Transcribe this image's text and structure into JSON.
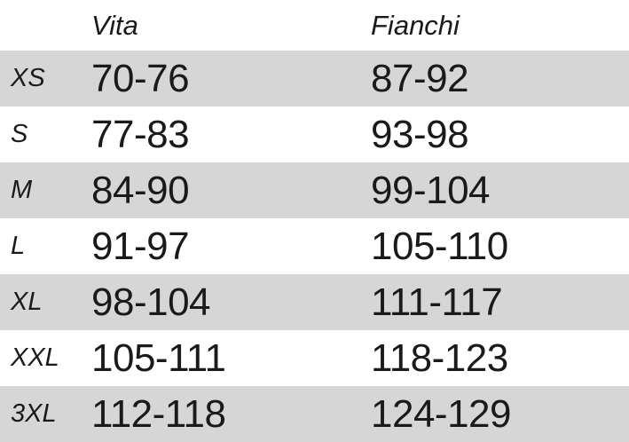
{
  "colors": {
    "stripe_gray": "#d6d6d6",
    "row_white": "#ffffff",
    "text": "#1a1a1a"
  },
  "chart_data": {
    "type": "table",
    "title": "",
    "columns": [
      "",
      "Vita",
      "Fianchi"
    ],
    "rows": [
      {
        "size": "XS",
        "vita": "70-76",
        "fianchi": "87-92"
      },
      {
        "size": "S",
        "vita": "77-83",
        "fianchi": "93-98"
      },
      {
        "size": "M",
        "vita": "84-90",
        "fianchi": "99-104"
      },
      {
        "size": "L",
        "vita": "91-97",
        "fianchi": "105-110"
      },
      {
        "size": "XL",
        "vita": "98-104",
        "fianchi": "111-117"
      },
      {
        "size": "XXL",
        "vita": "105-111",
        "fianchi": "118-123"
      },
      {
        "size": "3XL",
        "vita": "112-118",
        "fianchi": "124-129"
      }
    ],
    "layout": {
      "striped": true,
      "stripe_rows": [
        "XS",
        "M",
        "XL",
        "3XL"
      ],
      "header_style": "italic",
      "size_label_style": "italic"
    }
  }
}
